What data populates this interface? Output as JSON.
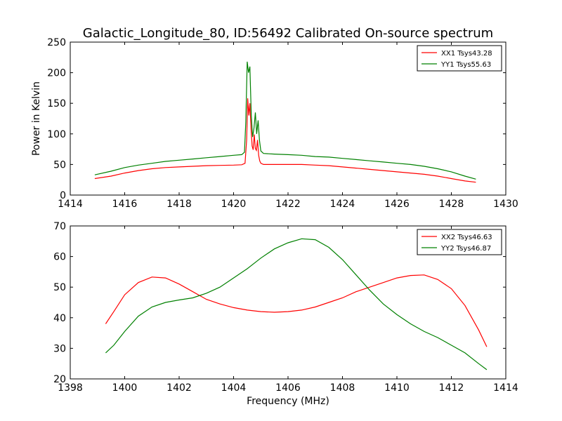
{
  "title": "Galactic_Longitude_80, ID:56492 Calibrated On-source spectrum",
  "colors": {
    "red": "#ff0000",
    "green": "#008000"
  },
  "chart_data": [
    {
      "type": "line",
      "ylabel": "Power in Kelvin",
      "xlabel": "",
      "xlim": [
        1414,
        1430
      ],
      "ylim": [
        0,
        250
      ],
      "xticks": [
        1414,
        1416,
        1418,
        1420,
        1422,
        1424,
        1426,
        1428,
        1430
      ],
      "yticks": [
        0,
        50,
        100,
        150,
        200,
        250
      ],
      "legend_position": "top-right",
      "grid": false,
      "series": [
        {
          "name": "XX1 Tsys43.28",
          "color": "#ff0000",
          "points": [
            [
              1414.9,
              27
            ],
            [
              1415.5,
              31
            ],
            [
              1416,
              36
            ],
            [
              1416.5,
              40
            ],
            [
              1417,
              43
            ],
            [
              1417.5,
              45
            ],
            [
              1418,
              46
            ],
            [
              1418.5,
              47
            ],
            [
              1419,
              48
            ],
            [
              1419.5,
              48.5
            ],
            [
              1420,
              49
            ],
            [
              1420.3,
              49.5
            ],
            [
              1420.42,
              52
            ],
            [
              1420.48,
              90
            ],
            [
              1420.52,
              158
            ],
            [
              1420.56,
              130
            ],
            [
              1420.6,
              150
            ],
            [
              1420.64,
              110
            ],
            [
              1420.68,
              80
            ],
            [
              1420.72,
              74
            ],
            [
              1420.76,
              99
            ],
            [
              1420.8,
              76
            ],
            [
              1420.84,
              73
            ],
            [
              1420.88,
              90
            ],
            [
              1420.92,
              65
            ],
            [
              1420.96,
              56
            ],
            [
              1421,
              52
            ],
            [
              1421.1,
              50
            ],
            [
              1421.5,
              50
            ],
            [
              1422,
              50
            ],
            [
              1422.5,
              50
            ],
            [
              1423,
              49
            ],
            [
              1423.5,
              48
            ],
            [
              1424,
              46
            ],
            [
              1424.5,
              44
            ],
            [
              1425,
              42
            ],
            [
              1425.5,
              40
            ],
            [
              1426,
              38
            ],
            [
              1426.5,
              36
            ],
            [
              1427,
              34
            ],
            [
              1427.5,
              31
            ],
            [
              1428,
              27
            ],
            [
              1428.5,
              23
            ],
            [
              1428.9,
              21
            ]
          ]
        },
        {
          "name": "YY1 Tsys55.63",
          "color": "#008000",
          "points": [
            [
              1414.9,
              33
            ],
            [
              1415.5,
              39
            ],
            [
              1416,
              45
            ],
            [
              1416.5,
              49
            ],
            [
              1417,
              52
            ],
            [
              1417.5,
              55
            ],
            [
              1418,
              57
            ],
            [
              1418.5,
              59
            ],
            [
              1419,
              61
            ],
            [
              1419.5,
              63
            ],
            [
              1420,
              65
            ],
            [
              1420.3,
              66
            ],
            [
              1420.4,
              70
            ],
            [
              1420.45,
              120
            ],
            [
              1420.5,
              218
            ],
            [
              1420.55,
              200
            ],
            [
              1420.6,
              210
            ],
            [
              1420.65,
              130
            ],
            [
              1420.7,
              95
            ],
            [
              1420.75,
              110
            ],
            [
              1420.8,
              135
            ],
            [
              1420.85,
              100
            ],
            [
              1420.9,
              122
            ],
            [
              1420.95,
              90
            ],
            [
              1421,
              72
            ],
            [
              1421.1,
              68
            ],
            [
              1421.5,
              67
            ],
            [
              1422,
              66
            ],
            [
              1422.5,
              65
            ],
            [
              1423,
              63
            ],
            [
              1423.5,
              62
            ],
            [
              1424,
              60
            ],
            [
              1424.5,
              58
            ],
            [
              1425,
              56
            ],
            [
              1425.5,
              54
            ],
            [
              1426,
              52
            ],
            [
              1426.5,
              50
            ],
            [
              1427,
              47
            ],
            [
              1427.5,
              43
            ],
            [
              1428,
              38
            ],
            [
              1428.5,
              31
            ],
            [
              1428.9,
              26
            ]
          ]
        }
      ]
    },
    {
      "type": "line",
      "ylabel": "",
      "xlabel": "Frequency (MHz)",
      "xlim": [
        1398,
        1414
      ],
      "ylim": [
        20,
        70
      ],
      "xticks": [
        1398,
        1400,
        1402,
        1404,
        1406,
        1408,
        1410,
        1412,
        1414
      ],
      "yticks": [
        20,
        30,
        40,
        50,
        60,
        70
      ],
      "legend_position": "top-right",
      "grid": false,
      "series": [
        {
          "name": "XX2 Tsys46.63",
          "color": "#ff0000",
          "points": [
            [
              1399.3,
              38
            ],
            [
              1399.6,
              42
            ],
            [
              1400,
              47.5
            ],
            [
              1400.5,
              51.5
            ],
            [
              1401,
              53.3
            ],
            [
              1401.5,
              53
            ],
            [
              1402,
              51
            ],
            [
              1402.5,
              48.5
            ],
            [
              1403,
              46
            ],
            [
              1403.5,
              44.5
            ],
            [
              1404,
              43.3
            ],
            [
              1404.5,
              42.5
            ],
            [
              1405,
              42
            ],
            [
              1405.5,
              41.8
            ],
            [
              1406,
              42
            ],
            [
              1406.5,
              42.5
            ],
            [
              1407,
              43.5
            ],
            [
              1407.5,
              45
            ],
            [
              1408,
              46.5
            ],
            [
              1408.5,
              48.5
            ],
            [
              1409,
              50
            ],
            [
              1409.5,
              51.5
            ],
            [
              1410,
              53
            ],
            [
              1410.5,
              53.8
            ],
            [
              1411,
              54
            ],
            [
              1411.5,
              52.5
            ],
            [
              1412,
              49.5
            ],
            [
              1412.5,
              44
            ],
            [
              1413,
              36
            ],
            [
              1413.3,
              30.5
            ]
          ]
        },
        {
          "name": "YY2 Tsys46.87",
          "color": "#008000",
          "points": [
            [
              1399.3,
              28.5
            ],
            [
              1399.6,
              31
            ],
            [
              1400,
              35.5
            ],
            [
              1400.5,
              40.5
            ],
            [
              1401,
              43.5
            ],
            [
              1401.5,
              45
            ],
            [
              1402,
              45.8
            ],
            [
              1402.5,
              46.5
            ],
            [
              1403,
              48
            ],
            [
              1403.5,
              50
            ],
            [
              1404,
              53
            ],
            [
              1404.5,
              56
            ],
            [
              1405,
              59.5
            ],
            [
              1405.5,
              62.5
            ],
            [
              1406,
              64.5
            ],
            [
              1406.5,
              65.8
            ],
            [
              1407,
              65.5
            ],
            [
              1407.5,
              63
            ],
            [
              1408,
              59
            ],
            [
              1408.5,
              54
            ],
            [
              1409,
              49
            ],
            [
              1409.5,
              44.5
            ],
            [
              1410,
              41
            ],
            [
              1410.5,
              38
            ],
            [
              1411,
              35.5
            ],
            [
              1411.5,
              33.5
            ],
            [
              1412,
              31
            ],
            [
              1412.5,
              28.5
            ],
            [
              1413,
              25
            ],
            [
              1413.3,
              23
            ]
          ]
        }
      ]
    }
  ]
}
